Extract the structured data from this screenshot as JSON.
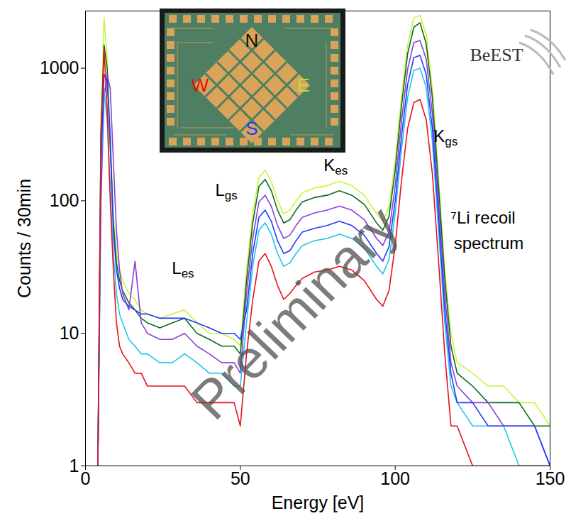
{
  "chart_data": {
    "type": "line",
    "xlabel": "Energy [eV]",
    "ylabel": "Counts / 30min",
    "log": "y",
    "grid": false,
    "xlim": [
      0,
      150
    ],
    "ylim": [
      1,
      2700
    ],
    "xticks": [
      0,
      50,
      100,
      150
    ],
    "yticks": [
      1,
      10,
      100,
      1000
    ],
    "x": [
      4,
      5,
      6,
      7,
      8,
      9,
      10,
      11,
      12,
      14,
      16,
      18,
      20,
      24,
      28,
      32,
      36,
      40,
      44,
      48,
      50,
      52,
      54,
      56,
      58,
      60,
      62,
      64,
      66,
      68,
      70,
      74,
      78,
      82,
      86,
      90,
      94,
      96,
      98,
      100,
      102,
      104,
      106,
      108,
      110,
      112,
      114,
      116,
      118,
      120,
      125,
      130,
      135,
      140,
      145,
      150
    ],
    "series": [
      {
        "color": "#c8f53a",
        "values": [
          1,
          400,
          2400,
          1200,
          300,
          80,
          40,
          30,
          25,
          20,
          18,
          15,
          14,
          13,
          14,
          15,
          12,
          10,
          10,
          9,
          8,
          30,
          80,
          150,
          170,
          140,
          100,
          80,
          85,
          100,
          115,
          125,
          130,
          140,
          130,
          110,
          80,
          70,
          90,
          200,
          600,
          1500,
          2400,
          2500,
          1800,
          700,
          150,
          30,
          10,
          6,
          5,
          4,
          4,
          3,
          3,
          2
        ]
      },
      {
        "color": "#0b6b1f",
        "values": [
          1,
          340,
          1500,
          1000,
          250,
          68,
          34,
          25,
          21,
          17,
          15,
          13,
          12,
          11,
          12,
          13,
          10,
          9,
          8,
          8,
          7,
          25,
          68,
          128,
          145,
          119,
          85,
          68,
          72,
          85,
          98,
          106,
          110,
          119,
          110,
          94,
          68,
          60,
          76,
          170,
          510,
          1280,
          2040,
          2200,
          1530,
          600,
          128,
          26,
          8,
          5,
          4,
          3,
          3,
          3,
          2,
          2
        ]
      },
      {
        "color": "#8b3fd9",
        "values": [
          1,
          100,
          600,
          900,
          700,
          200,
          60,
          30,
          20,
          15,
          35,
          12,
          10,
          9,
          9,
          10,
          8,
          7,
          6,
          6,
          5,
          20,
          52,
          98,
          110,
          91,
          65,
          52,
          55,
          65,
          75,
          81,
          85,
          91,
          85,
          72,
          52,
          46,
          58,
          130,
          390,
          980,
          1560,
          1620,
          1170,
          455,
          98,
          20,
          6,
          4,
          3,
          3,
          2,
          2,
          2,
          1
        ]
      },
      {
        "color": "#22c4e8",
        "values": [
          1,
          150,
          700,
          400,
          120,
          40,
          20,
          14,
          12,
          9,
          8,
          7,
          7,
          6,
          6,
          7,
          6,
          5,
          5,
          4,
          4,
          12,
          32,
          60,
          68,
          56,
          40,
          32,
          34,
          40,
          46,
          50,
          52,
          56,
          52,
          44,
          32,
          28,
          36,
          80,
          240,
          600,
          960,
          1000,
          720,
          280,
          60,
          12,
          4,
          3,
          2,
          2,
          2,
          1,
          1,
          1
        ]
      },
      {
        "color": "#1e3cff",
        "values": [
          1,
          200,
          900,
          800,
          300,
          60,
          30,
          22,
          18,
          16,
          15,
          14,
          14,
          13,
          13,
          13,
          12,
          11,
          10,
          10,
          9,
          15,
          40,
          75,
          85,
          70,
          50,
          40,
          42,
          50,
          58,
          62,
          65,
          70,
          65,
          55,
          40,
          35,
          45,
          100,
          300,
          750,
          1200,
          1250,
          900,
          350,
          75,
          15,
          5,
          3,
          3,
          2,
          2,
          2,
          2,
          1
        ]
      },
      {
        "color": "#e8101c",
        "values": [
          1,
          300,
          1400,
          500,
          100,
          30,
          12,
          8,
          7,
          6,
          5,
          5,
          4,
          4,
          4,
          4,
          3,
          3,
          3,
          3,
          2,
          7,
          18,
          35,
          40,
          32,
          23,
          18,
          20,
          23,
          26,
          29,
          30,
          32,
          30,
          25,
          18,
          16,
          21,
          46,
          140,
          350,
          550,
          580,
          410,
          160,
          35,
          7,
          2,
          2,
          1,
          1,
          1,
          1,
          1,
          1
        ]
      }
    ],
    "annotations": [
      {
        "text": "L",
        "subscript": "es",
        "x": 28,
        "y": 30
      },
      {
        "text": "L",
        "subscript": "gs",
        "x": 42,
        "y": 117
      },
      {
        "text": "K",
        "subscript": "es",
        "x": 77,
        "y": 180
      },
      {
        "text": "K",
        "subscript": "gs",
        "x": 112.5,
        "y": 297
      },
      {
        "text": "⁷Li recoil",
        "x": 118,
        "y": 72
      },
      {
        "text": "spectrum",
        "x": 119,
        "y": 46
      }
    ],
    "watermark": "Preliminary",
    "logo": "BeEST",
    "inset_labels": [
      {
        "text": "N",
        "color": "#111111"
      },
      {
        "text": "W",
        "color": "#e01010"
      },
      {
        "text": "E",
        "color": "#b8e040"
      },
      {
        "text": "S",
        "color": "#1e3cff"
      }
    ]
  }
}
